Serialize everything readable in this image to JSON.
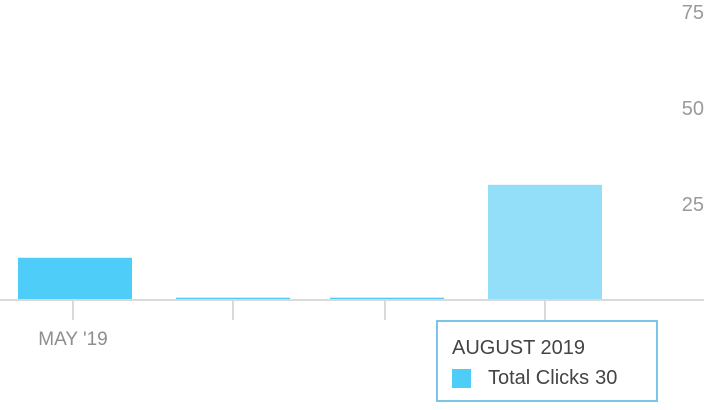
{
  "chart_data": {
    "type": "bar",
    "categories": [
      "MAY '19",
      "",
      "",
      ""
    ],
    "series": [
      {
        "values": [
          11,
          0.6,
          0.6,
          30
        ]
      }
    ],
    "highlighted_index": 3,
    "ylim": [
      0,
      75
    ],
    "yticks": [
      25,
      50,
      75
    ],
    "y_axis_side": "right",
    "grid": false,
    "colors": {
      "bar": "#4dcdf7",
      "bar_highlight": "#93dff9",
      "axis": "#d9d9d9"
    }
  },
  "tooltip": {
    "title": "AUGUST 2019",
    "series_label": "Total Clicks",
    "value": "30",
    "swatch_color": "#4dcdf7"
  }
}
